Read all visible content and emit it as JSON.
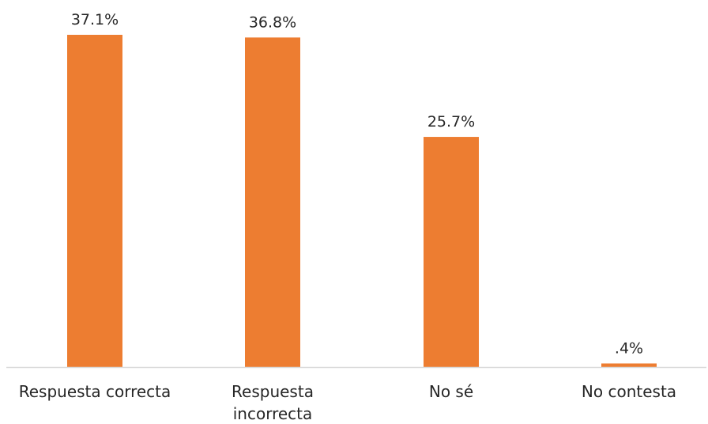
{
  "chart_data": {
    "type": "bar",
    "categories": [
      [
        "Respuesta correcta"
      ],
      [
        "Respuesta",
        "incorrecta"
      ],
      [
        "No sé"
      ],
      [
        "No contesta"
      ]
    ],
    "values": [
      37.1,
      36.8,
      25.7,
      0.4
    ],
    "value_labels": [
      "37.1%",
      "36.8%",
      "25.7%",
      ".4%"
    ],
    "title": "",
    "xlabel": "",
    "ylabel": "",
    "ylim": [
      0,
      37.1
    ],
    "grid": false,
    "legend": "none",
    "bar_color": "#ED7D31",
    "axis_color": "#D9D9D9"
  }
}
